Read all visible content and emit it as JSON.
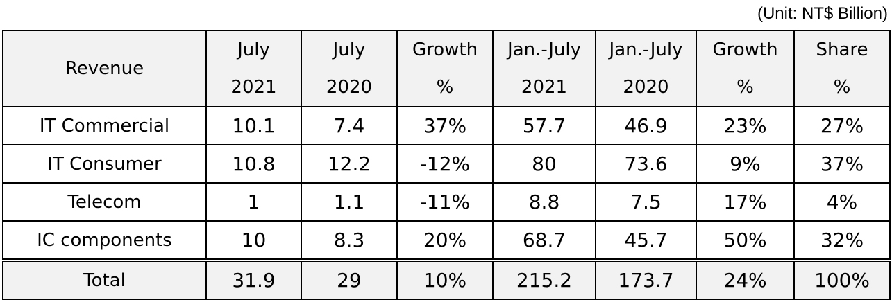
{
  "unit_note": "(Unit: NT$ Billion)",
  "headers": [
    {
      "l1": "Revenue",
      "l2": ""
    },
    {
      "l1": "July",
      "l2": "2021"
    },
    {
      "l1": "July",
      "l2": "2020"
    },
    {
      "l1": "Growth",
      "l2": "%"
    },
    {
      "l1": "Jan.-July",
      "l2": "2021"
    },
    {
      "l1": "Jan.-July",
      "l2": "2020"
    },
    {
      "l1": "Growth",
      "l2": "%"
    },
    {
      "l1": "Share",
      "l2": "%"
    }
  ],
  "rows": [
    [
      "IT Commercial",
      "10.1",
      "7.4",
      "37%",
      "57.7",
      "46.9",
      "23%",
      "27%"
    ],
    [
      "IT Consumer",
      "10.8",
      "12.2",
      "-12%",
      "80",
      "73.6",
      "9%",
      "37%"
    ],
    [
      "Telecom",
      "1",
      "1.1",
      "-11%",
      "8.8",
      "7.5",
      "17%",
      "4%"
    ],
    [
      "IC components",
      "10",
      "8.3",
      "20%",
      "68.7",
      "45.7",
      "50%",
      "32%"
    ],
    [
      "Total",
      "31.9",
      "29",
      "10%",
      "215.2",
      "173.7",
      "24%",
      "100%"
    ]
  ]
}
